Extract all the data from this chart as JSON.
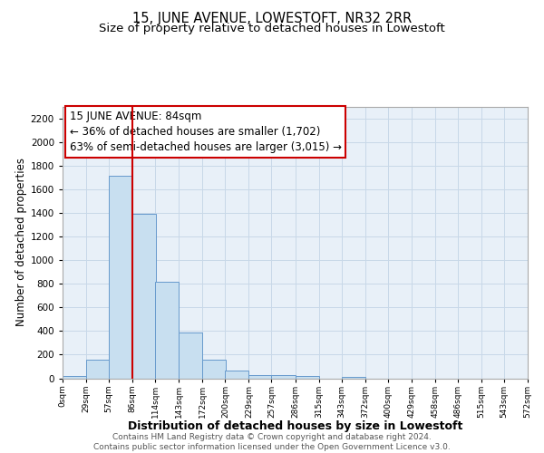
{
  "title": "15, JUNE AVENUE, LOWESTOFT, NR32 2RR",
  "subtitle": "Size of property relative to detached houses in Lowestoft",
  "xlabel": "Distribution of detached houses by size in Lowestoft",
  "ylabel": "Number of detached properties",
  "bar_left_edges": [
    0,
    29,
    57,
    86,
    114,
    143,
    172,
    200,
    229,
    257,
    286,
    315,
    343,
    372,
    400,
    429,
    458,
    486,
    515,
    543
  ],
  "bar_heights": [
    20,
    155,
    1710,
    1390,
    820,
    385,
    160,
    65,
    30,
    25,
    20,
    0,
    15,
    0,
    0,
    0,
    0,
    0,
    0,
    0
  ],
  "bin_width": 29,
  "bar_color": "#c8dff0",
  "bar_edge_color": "#6699cc",
  "bar_alpha": 1.0,
  "vline_x": 86,
  "vline_color": "#cc0000",
  "annotation_line1": "15 JUNE AVENUE: 84sqm",
  "annotation_line2": "← 36% of detached houses are smaller (1,702)",
  "annotation_line3": "63% of semi-detached houses are larger (3,015) →",
  "box_edge_color": "#cc0000",
  "ylim": [
    0,
    2300
  ],
  "yticks": [
    0,
    200,
    400,
    600,
    800,
    1000,
    1200,
    1400,
    1600,
    1800,
    2000,
    2200
  ],
  "xtick_labels": [
    "0sqm",
    "29sqm",
    "57sqm",
    "86sqm",
    "114sqm",
    "143sqm",
    "172sqm",
    "200sqm",
    "229sqm",
    "257sqm",
    "286sqm",
    "315sqm",
    "343sqm",
    "372sqm",
    "400sqm",
    "429sqm",
    "458sqm",
    "486sqm",
    "515sqm",
    "543sqm",
    "572sqm"
  ],
  "xtick_positions": [
    0,
    29,
    57,
    86,
    114,
    143,
    172,
    200,
    229,
    257,
    286,
    315,
    343,
    372,
    400,
    429,
    458,
    486,
    515,
    543,
    572
  ],
  "xlim": [
    0,
    572
  ],
  "grid_color": "#c8d8e8",
  "background_color": "#e8f0f8",
  "footer_text": "Contains HM Land Registry data © Crown copyright and database right 2024.\nContains public sector information licensed under the Open Government Licence v3.0.",
  "title_fontsize": 10.5,
  "subtitle_fontsize": 9.5,
  "xlabel_fontsize": 9,
  "ylabel_fontsize": 8.5,
  "annotation_fontsize": 8.5,
  "footer_fontsize": 6.5
}
